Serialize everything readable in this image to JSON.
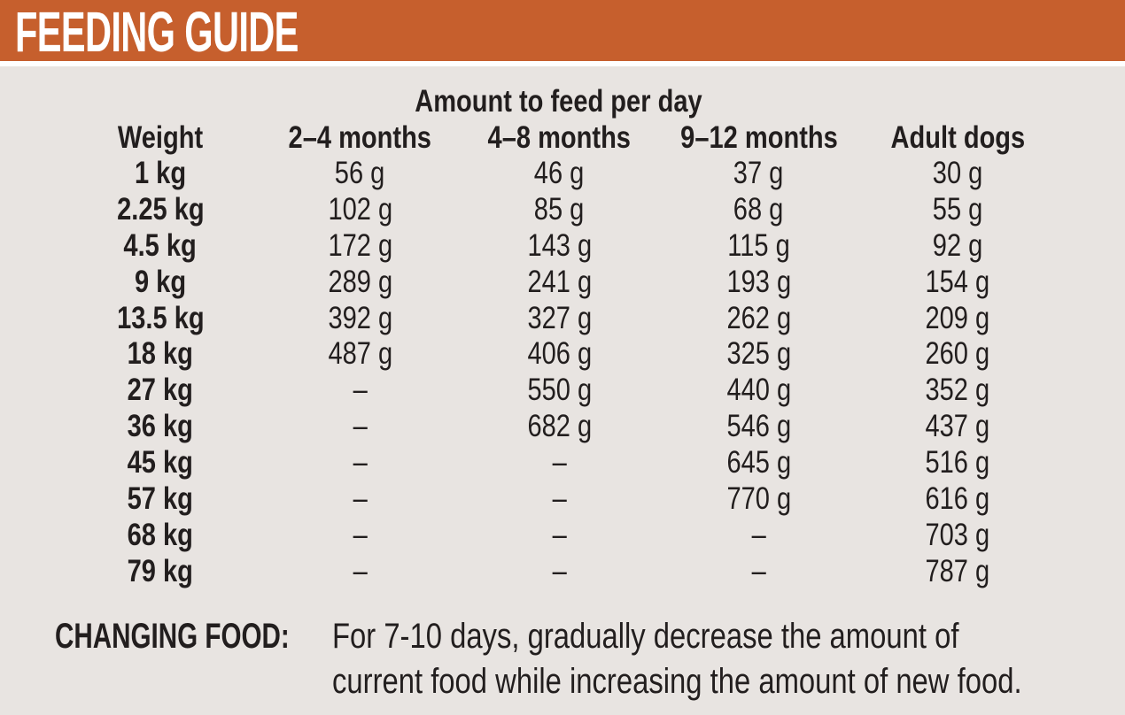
{
  "header": {
    "title": "FEEDING GUIDE"
  },
  "table": {
    "title": "Amount to feed per day",
    "columns": [
      "Weight",
      "2–4 months",
      "4–8 months",
      "9–12 months",
      "Adult dogs"
    ],
    "rows": [
      [
        "1 kg",
        "56 g",
        "46 g",
        "37 g",
        "30 g"
      ],
      [
        "2.25 kg",
        "102 g",
        "85 g",
        "68 g",
        "55 g"
      ],
      [
        "4.5 kg",
        "172 g",
        "143 g",
        "115 g",
        "92 g"
      ],
      [
        "9 kg",
        "289 g",
        "241 g",
        "193 g",
        "154 g"
      ],
      [
        "13.5 kg",
        "392 g",
        "327 g",
        "262 g",
        "209 g"
      ],
      [
        "18 kg",
        "487 g",
        "406 g",
        "325 g",
        "260 g"
      ],
      [
        "27 kg",
        "–",
        "550 g",
        "440 g",
        "352 g"
      ],
      [
        "36 kg",
        "–",
        "682 g",
        "546 g",
        "437 g"
      ],
      [
        "45 kg",
        "–",
        "–",
        "645 g",
        "516 g"
      ],
      [
        "57 kg",
        "–",
        "–",
        "770 g",
        "616 g"
      ],
      [
        "68 kg",
        "–",
        "–",
        "–",
        "703 g"
      ],
      [
        "79 kg",
        "–",
        "–",
        "–",
        "787 g"
      ]
    ]
  },
  "chart_data": {
    "type": "table",
    "title": "Amount to feed per day",
    "categories": [
      "1 kg",
      "2.25 kg",
      "4.5 kg",
      "9 kg",
      "13.5 kg",
      "18 kg",
      "27 kg",
      "36 kg",
      "45 kg",
      "57 kg",
      "68 kg",
      "79 kg"
    ],
    "series": [
      {
        "name": "2–4 months",
        "values": [
          56,
          102,
          172,
          289,
          392,
          487,
          null,
          null,
          null,
          null,
          null,
          null
        ]
      },
      {
        "name": "4–8 months",
        "values": [
          46,
          85,
          143,
          241,
          327,
          406,
          550,
          682,
          null,
          null,
          null,
          null
        ]
      },
      {
        "name": "9–12 months",
        "values": [
          37,
          68,
          115,
          193,
          262,
          325,
          440,
          546,
          645,
          770,
          null,
          null
        ]
      },
      {
        "name": "Adult dogs",
        "values": [
          30,
          55,
          92,
          154,
          209,
          260,
          352,
          437,
          516,
          616,
          703,
          787
        ]
      }
    ],
    "unit": "g",
    "xlabel": "Weight",
    "ylabel": "Amount to feed per day (g)"
  },
  "note": {
    "label": "CHANGING FOOD:",
    "line1": "For 7-10 days, gradually decrease the amount of",
    "line2": "current food while increasing the amount of new food."
  },
  "colors": {
    "accent_orange": "#C65F2D",
    "background": "#E8E4E1",
    "text": "#221E1E",
    "title_text": "#FFFFFF"
  }
}
